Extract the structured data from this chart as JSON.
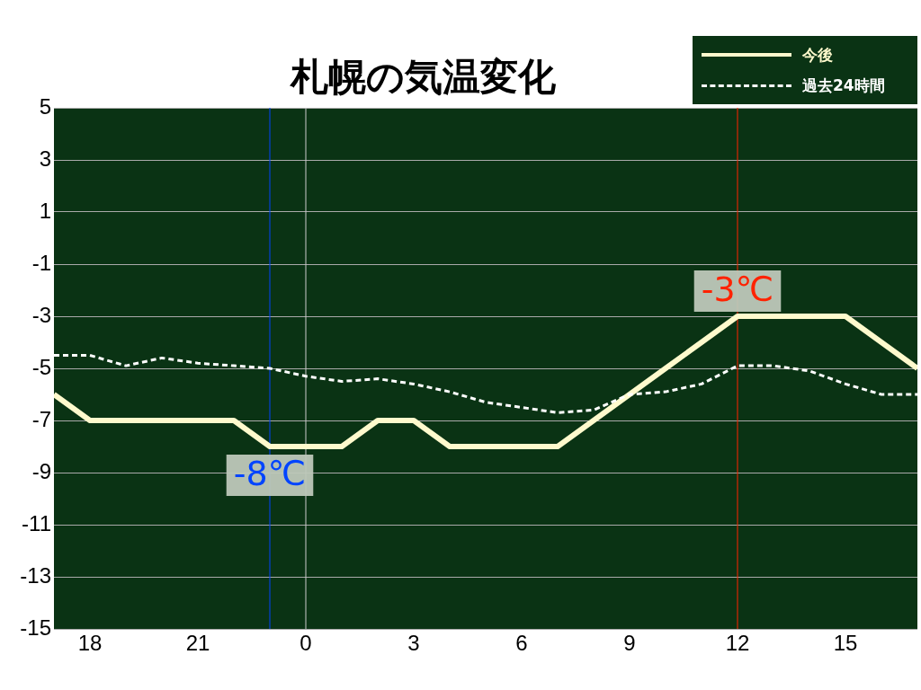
{
  "chart_data": {
    "type": "line",
    "title": "札幌の気温変化",
    "x": [
      "--01-01T17:00",
      "--01-01T18:00",
      "--01-01T19:00",
      "--01-01T20:00",
      "--01-01T21:00",
      "--01-01T22:00",
      "--01-01T23:00",
      "--01-02T00:00",
      "--01-02T01:00",
      "--01-02T02:00",
      "--01-02T03:00",
      "--01-02T04:00",
      "--01-02T05:00",
      "--01-02T06:00",
      "--01-02T07:00",
      "--01-02T08:00",
      "--01-02T09:00",
      "--01-02T10:00",
      "--01-02T11:00",
      "--01-02T12:00",
      "--01-02T13:00",
      "--01-02T14:00",
      "--01-02T15:00",
      "--01-02T16:00",
      "--01-02T17:00"
    ],
    "series": [
      {
        "name": "今後",
        "color": "#fffacd",
        "values": [
          -6,
          -7,
          -7,
          -7,
          -7,
          -7,
          -8,
          -8,
          -8,
          -7,
          -7,
          -8,
          -8,
          -8,
          -8,
          -7,
          -6,
          -5,
          -4,
          -3,
          -3,
          -3,
          -3,
          -4,
          -5
        ]
      },
      {
        "name": "過去24時間",
        "color": "#ffffff",
        "line_style": "dashed",
        "values": [
          -4.5,
          -4.5,
          -4.9,
          -4.6,
          -4.8,
          -4.9,
          -5.0,
          -5.3,
          -5.5,
          -5.4,
          -5.6,
          -5.9,
          -6.3,
          -6.5,
          -6.7,
          -6.6,
          -6.0,
          -5.9,
          -5.6,
          -4.9,
          -4.9,
          -5.1,
          -5.6,
          -6.0,
          -6.0
        ]
      }
    ],
    "xlim": [
      "--01-01T17:00",
      "--01-02T17:00"
    ],
    "xticks": [
      {
        "value": "--01-01T18:00",
        "label": "18"
      },
      {
        "value": "--01-01T21:00",
        "label": "21"
      },
      {
        "value": "--01-02T00:00",
        "label": "0"
      },
      {
        "value": "--01-02T03:00",
        "label": "3"
      },
      {
        "value": "--01-02T06:00",
        "label": "6"
      },
      {
        "value": "--01-02T09:00",
        "label": "9"
      },
      {
        "value": "--01-02T12:00",
        "label": "12"
      },
      {
        "value": "--01-02T15:00",
        "label": "15"
      }
    ],
    "ylim": [
      -15,
      5
    ],
    "yticks": [
      5,
      3,
      1,
      -1,
      -3,
      -5,
      -7,
      -9,
      -11,
      -13,
      -15
    ],
    "grid": "y",
    "legend": "top right",
    "marker": "none",
    "ref_lines": [
      {
        "axis": "x",
        "value": "--01-02T00:00",
        "color": "#cccccc"
      },
      {
        "axis": "x",
        "value": "--01-01T23:00",
        "color": "#0044ff"
      },
      {
        "axis": "x",
        "value": "--01-02T12:00",
        "color": "#ff2200"
      }
    ],
    "annotations": [
      {
        "text": "-8℃",
        "x": "--01-01T23:00",
        "y": -8
      },
      {
        "text": "-3℃",
        "x": "--01-02T12:00",
        "y": -3
      }
    ]
  }
}
